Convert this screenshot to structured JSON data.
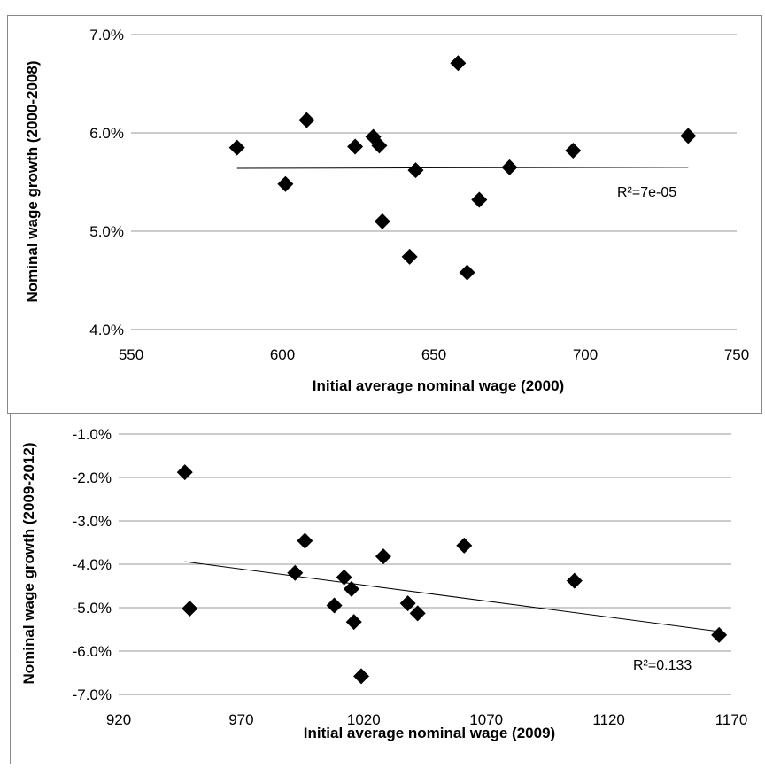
{
  "chart_data": [
    {
      "type": "scatter",
      "title": "",
      "xlabel": "Initial average nominal wage (2000)",
      "ylabel": "Nominal wage growth (2000-2008)",
      "xlim": [
        550,
        750
      ],
      "ylim": [
        4.0,
        7.0
      ],
      "x_ticks": [
        "550",
        "600",
        "650",
        "700",
        "750"
      ],
      "y_ticks": [
        "4.0%",
        "5.0%",
        "6.0%",
        "7.0%"
      ],
      "gridlines": "horizontal",
      "points": [
        {
          "x": 585,
          "y": 5.85
        },
        {
          "x": 601,
          "y": 5.48
        },
        {
          "x": 608,
          "y": 6.13
        },
        {
          "x": 624,
          "y": 5.86
        },
        {
          "x": 630,
          "y": 5.96
        },
        {
          "x": 632,
          "y": 5.87
        },
        {
          "x": 633,
          "y": 5.1
        },
        {
          "x": 642,
          "y": 4.74
        },
        {
          "x": 644,
          "y": 5.62
        },
        {
          "x": 658,
          "y": 6.71
        },
        {
          "x": 661,
          "y": 4.58
        },
        {
          "x": 665,
          "y": 5.32
        },
        {
          "x": 675,
          "y": 5.65
        },
        {
          "x": 696,
          "y": 5.82
        },
        {
          "x": 734,
          "y": 5.97
        }
      ],
      "trendline": {
        "x": [
          585,
          734
        ],
        "y": [
          5.64,
          5.65
        ]
      },
      "annotation": "R²=7e-05"
    },
    {
      "type": "scatter",
      "title": "",
      "xlabel": "Initial average nominal wage (2009)",
      "ylabel": "Nominal wage growth (2009-2012)",
      "xlim": [
        920,
        1170
      ],
      "ylim": [
        -7.0,
        -1.0
      ],
      "x_ticks": [
        "920",
        "970",
        "1020",
        "1070",
        "1120",
        "1170"
      ],
      "y_ticks": [
        "-1.0%",
        "-2.0%",
        "-3.0%",
        "-4.0%",
        "-5.0%",
        "-6.0%",
        "-7.0%"
      ],
      "gridlines": "horizontal",
      "points": [
        {
          "x": 947,
          "y": -1.88
        },
        {
          "x": 949,
          "y": -5.02
        },
        {
          "x": 992,
          "y": -4.2
        },
        {
          "x": 996,
          "y": -3.46
        },
        {
          "x": 1008,
          "y": -4.95
        },
        {
          "x": 1012,
          "y": -4.3
        },
        {
          "x": 1015,
          "y": -4.57
        },
        {
          "x": 1016,
          "y": -5.33
        },
        {
          "x": 1019,
          "y": -6.58
        },
        {
          "x": 1028,
          "y": -3.82
        },
        {
          "x": 1038,
          "y": -4.9
        },
        {
          "x": 1042,
          "y": -5.13
        },
        {
          "x": 1061,
          "y": -3.57
        },
        {
          "x": 1106,
          "y": -4.38
        },
        {
          "x": 1165,
          "y": -5.63
        }
      ],
      "trendline": {
        "x": [
          947,
          1165
        ],
        "y": [
          -3.94,
          -5.55
        ]
      },
      "annotation": "R²=0.133"
    }
  ]
}
